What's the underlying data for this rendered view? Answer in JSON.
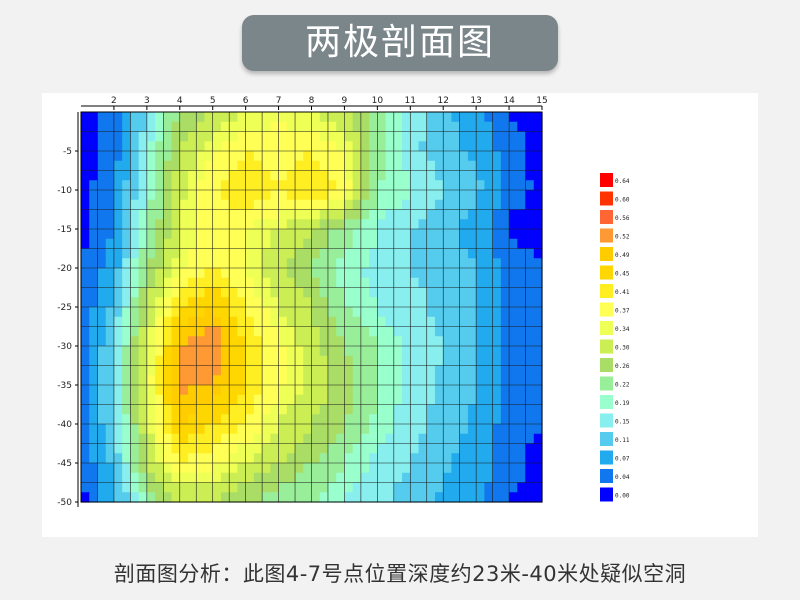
{
  "header": {
    "title": "两极剖面图"
  },
  "caption": "剖面图分析：此图4-7号点位置深度约23米-40米处疑似空洞",
  "chart_data": {
    "type": "heatmap",
    "title": "",
    "xlabel": "",
    "ylabel": "",
    "x_ticks": [
      2,
      3,
      4,
      5,
      6,
      7,
      8,
      9,
      10,
      11,
      12,
      13,
      14,
      15
    ],
    "y_ticks": [
      -5,
      -10,
      -15,
      -20,
      -25,
      -30,
      -35,
      -40,
      -45,
      -50
    ],
    "xlim": [
      1,
      15
    ],
    "ylim": [
      -50,
      0
    ],
    "grid": true,
    "x_axis_position": "top",
    "colorbar": {
      "position": "right",
      "labels": [
        "0.64",
        "0.60",
        "0.56",
        "0.52",
        "0.49",
        "0.45",
        "0.41",
        "0.37",
        "0.34",
        "0.30",
        "0.26",
        "0.22",
        "0.19",
        "0.15",
        "0.11",
        "0.07",
        "0.04",
        "0.00"
      ],
      "colors": [
        "#ff0000",
        "#ff3300",
        "#ff6633",
        "#ff9933",
        "#ffcc00",
        "#ffd700",
        "#ffee22",
        "#ffff55",
        "#eeff55",
        "#ccee55",
        "#aadd66",
        "#99ee99",
        "#99ffcc",
        "#88eeee",
        "#55ccee",
        "#22aaee",
        "#1177ee",
        "#0000ff"
      ]
    },
    "depths": [
      0,
      -5,
      -10,
      -15,
      -20,
      -25,
      -30,
      -35,
      -40,
      -45,
      -50
    ],
    "values": [
      [
        0.03,
        0.05,
        0.15,
        0.26,
        0.3,
        0.34,
        0.36,
        0.34,
        0.3,
        0.24,
        0.18,
        0.12,
        0.08,
        0.04,
        0.03
      ],
      [
        0.03,
        0.05,
        0.18,
        0.3,
        0.37,
        0.41,
        0.39,
        0.41,
        0.37,
        0.24,
        0.16,
        0.13,
        0.1,
        0.05,
        0.03
      ],
      [
        0.03,
        0.06,
        0.2,
        0.33,
        0.4,
        0.45,
        0.41,
        0.45,
        0.4,
        0.22,
        0.2,
        0.15,
        0.12,
        0.06,
        0.03
      ],
      [
        0.03,
        0.07,
        0.22,
        0.34,
        0.39,
        0.37,
        0.34,
        0.3,
        0.24,
        0.19,
        0.15,
        0.12,
        0.09,
        0.03,
        0.03
      ],
      [
        0.04,
        0.09,
        0.26,
        0.36,
        0.41,
        0.37,
        0.3,
        0.26,
        0.2,
        0.18,
        0.15,
        0.14,
        0.11,
        0.06,
        0.04
      ],
      [
        0.04,
        0.12,
        0.3,
        0.45,
        0.49,
        0.41,
        0.34,
        0.3,
        0.22,
        0.19,
        0.16,
        0.14,
        0.11,
        0.06,
        0.04
      ],
      [
        0.05,
        0.15,
        0.34,
        0.52,
        0.56,
        0.45,
        0.38,
        0.32,
        0.26,
        0.22,
        0.18,
        0.15,
        0.11,
        0.06,
        0.04
      ],
      [
        0.05,
        0.16,
        0.35,
        0.53,
        0.52,
        0.45,
        0.38,
        0.33,
        0.28,
        0.22,
        0.18,
        0.14,
        0.11,
        0.06,
        0.04
      ],
      [
        0.04,
        0.15,
        0.33,
        0.49,
        0.45,
        0.4,
        0.34,
        0.3,
        0.26,
        0.21,
        0.17,
        0.13,
        0.1,
        0.05,
        0.04
      ],
      [
        0.04,
        0.12,
        0.3,
        0.41,
        0.38,
        0.34,
        0.3,
        0.26,
        0.22,
        0.18,
        0.15,
        0.12,
        0.09,
        0.05,
        0.03
      ],
      [
        0.03,
        0.09,
        0.22,
        0.3,
        0.3,
        0.26,
        0.24,
        0.22,
        0.19,
        0.16,
        0.13,
        0.1,
        0.08,
        0.04,
        0.03
      ]
    ]
  }
}
